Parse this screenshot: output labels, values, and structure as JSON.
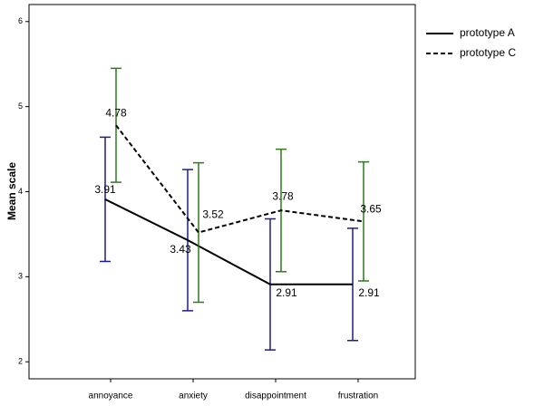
{
  "chart_data": {
    "type": "line",
    "y_label": "Mean scale",
    "categories": [
      "annoyance",
      "anxiety",
      "disappointment",
      "frustration"
    ],
    "ylim": [
      1.8,
      6.2
    ],
    "yticks": [
      2,
      3,
      4,
      5,
      6
    ],
    "legend": "right",
    "series": [
      {
        "name": "prototype A",
        "color": "#000000",
        "dash": false,
        "error_color": "#1f1f8a",
        "values": [
          3.91,
          3.43,
          2.91,
          2.91
        ],
        "error": [
          0.73,
          0.83,
          0.77,
          0.66
        ]
      },
      {
        "name": "prototype C",
        "color": "#000000",
        "dash": true,
        "error_color": "#2e7a1e",
        "values": [
          4.78,
          3.52,
          3.78,
          3.65
        ],
        "error": [
          0.67,
          0.82,
          0.72,
          0.7
        ]
      }
    ]
  }
}
